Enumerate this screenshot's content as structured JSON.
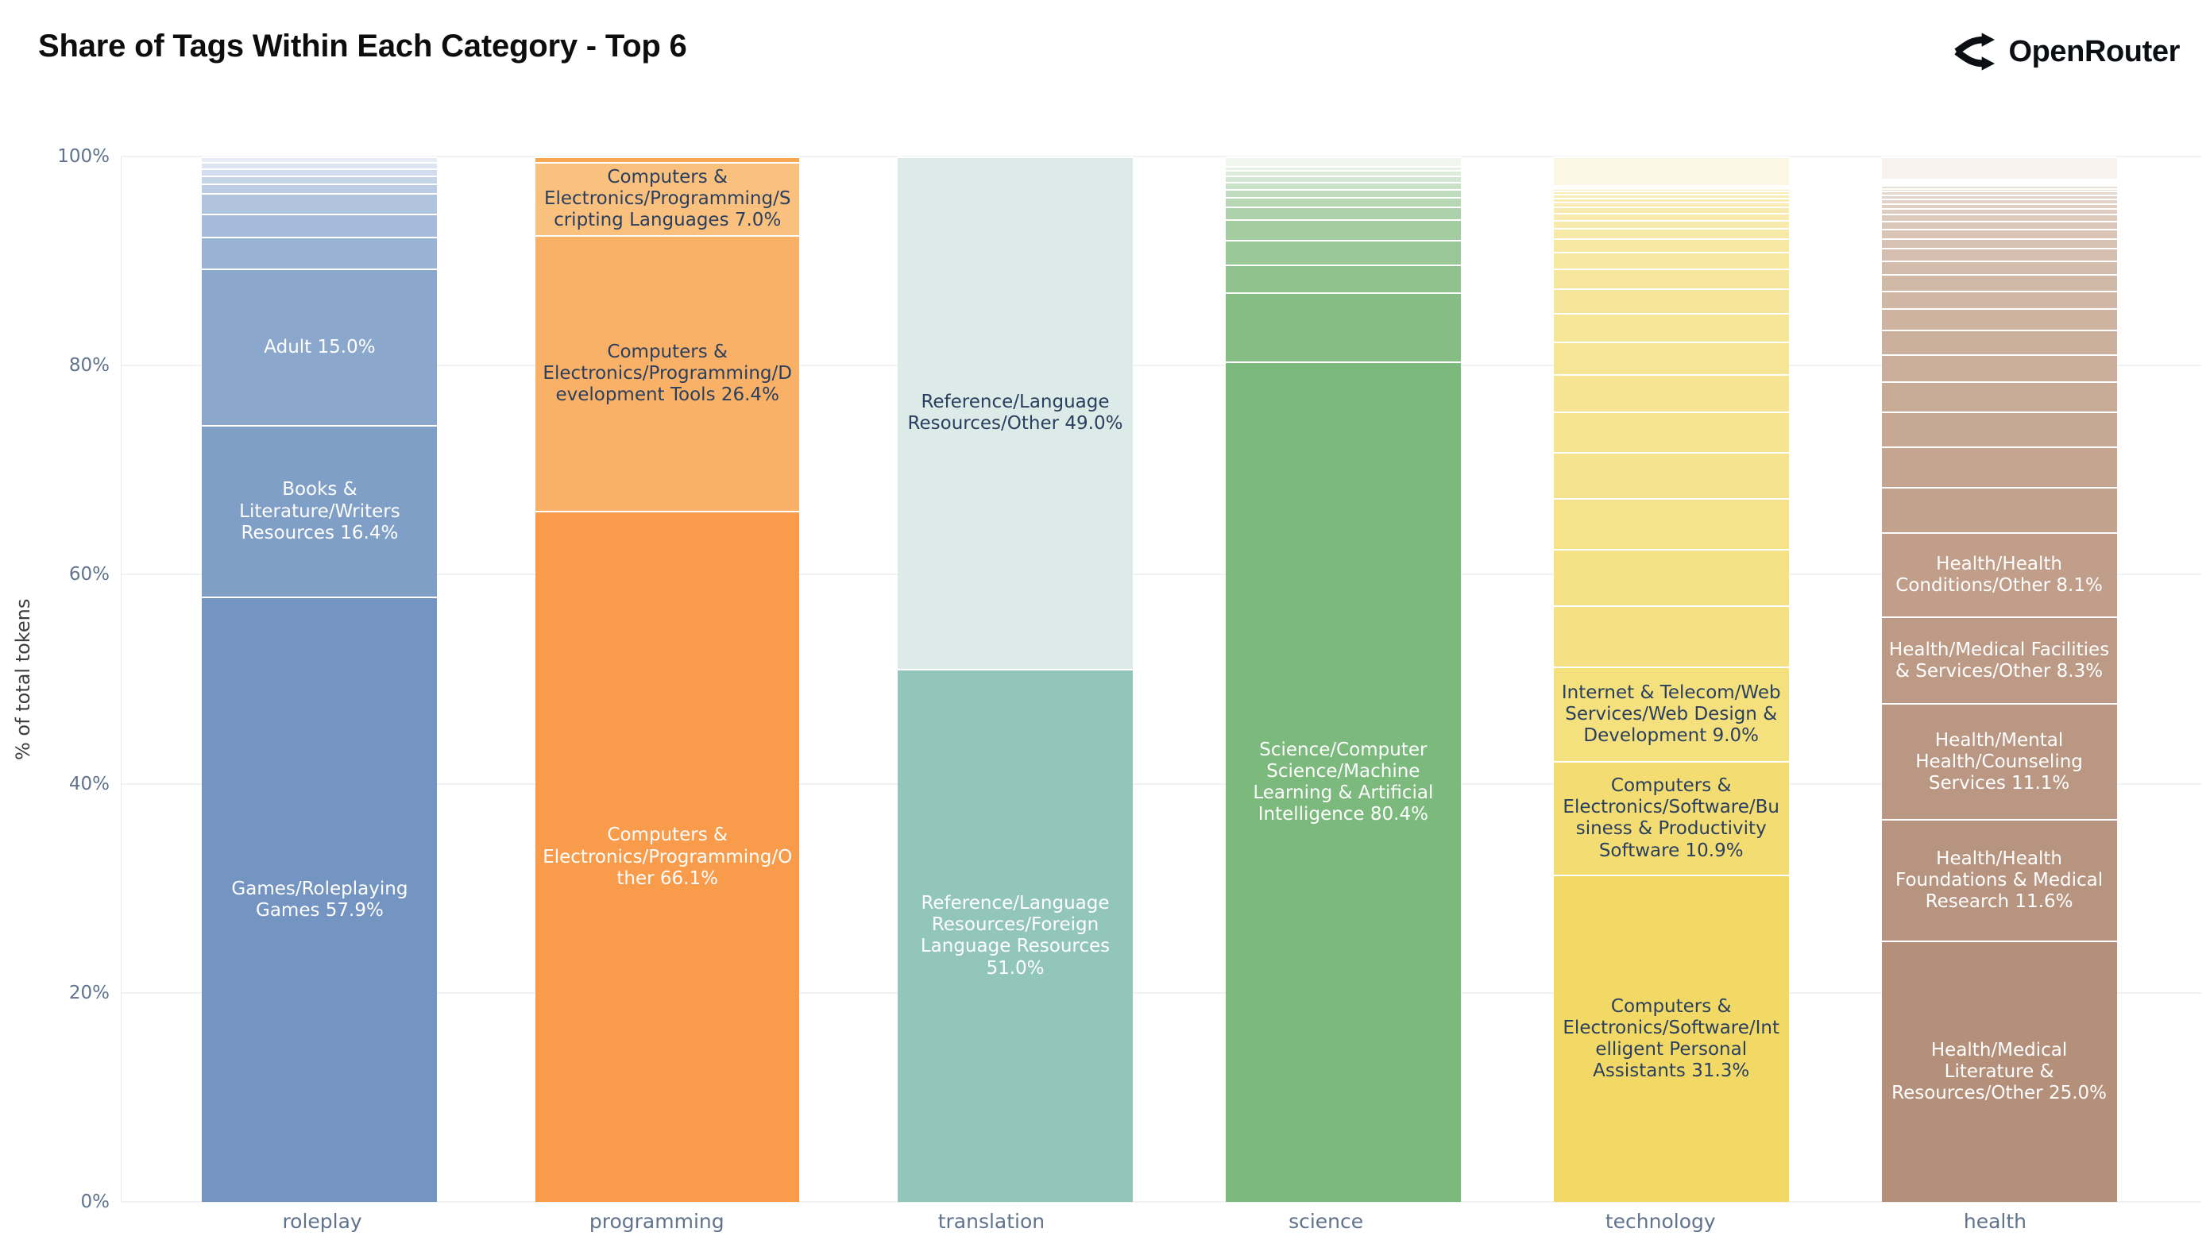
{
  "header": {
    "title": "Share of Tags Within Each Category - Top 6",
    "brand": "OpenRouter"
  },
  "y_axis": {
    "title": "% of total tokens",
    "tick_values": [
      0,
      20,
      40,
      60,
      80,
      100
    ],
    "tick_labels": [
      "0%",
      "20%",
      "40%",
      "60%",
      "80%",
      "100%"
    ]
  },
  "chart_data": {
    "type": "bar",
    "subtype": "stacked-normalized-percent",
    "title": "Share of Tags Within Each Category - Top 6",
    "xlabel": "",
    "ylabel": "% of total tokens",
    "ylim": [
      0,
      100
    ],
    "grid": true,
    "legend_position": "none (labels drawn inside segments)",
    "text_colors": {
      "light": "#ffffff",
      "dark": "#2a3f5f"
    },
    "categories": [
      "roleplay",
      "programming",
      "translation",
      "science",
      "technology",
      "health"
    ],
    "bars": [
      {
        "category": "roleplay",
        "segments": [
          {
            "label": "Games/Roleplaying Games",
            "pct": 57.9,
            "color": "#7495c1",
            "text": "light"
          },
          {
            "label": "Books & Literature/Writers Resources",
            "pct": 16.4,
            "color": "#809fc7",
            "text": "light"
          },
          {
            "label": "Adult",
            "pct": 15.0,
            "color": "#8ba7cb",
            "text": "light"
          }
        ],
        "tail": {
          "pct": 10.7,
          "weights": [
            3.0,
            2.2,
            2.0,
            0.9,
            0.8,
            0.7,
            0.6,
            0.5
          ],
          "color_from": "#9ab3d4",
          "color_to": "#e7edf6"
        }
      },
      {
        "category": "programming",
        "segments": [
          {
            "label": "Computers & Electronics/Programming/Other",
            "pct": 66.1,
            "color": "#f89b4b",
            "text": "light"
          },
          {
            "label": "Computers & Electronics/Programming/Development Tools",
            "pct": 26.4,
            "color": "#f9b067",
            "text": "dark"
          },
          {
            "label": "Computers & Electronics/Programming/Scripting Languages",
            "pct": 7.0,
            "color": "#fac07e",
            "text": "dark"
          }
        ],
        "tail": {
          "pct": 0.5,
          "weights": [
            1
          ],
          "color_from": "#f8a855",
          "color_to": "#f8a855"
        }
      },
      {
        "category": "translation",
        "segments": [
          {
            "label": "Reference/Language Resources/Foreign Language Resources",
            "pct": 51.0,
            "color": "#92c5bc",
            "text": "light"
          },
          {
            "label": "Reference/Language Resources/Other",
            "pct": 49.0,
            "color": "#dcebe8",
            "text": "dark"
          }
        ],
        "tail": {
          "pct": 0,
          "weights": [],
          "color_from": "#92c5bc",
          "color_to": "#92c5bc"
        }
      },
      {
        "category": "science",
        "segments": [
          {
            "label": "Science/Computer Science/Machine Learning & Artificial Intelligence",
            "pct": 80.4,
            "color": "#7cb97c",
            "text": "light"
          }
        ],
        "tail": {
          "pct": 19.6,
          "weights": [
            6.6,
            2.7,
            2.3,
            2.0,
            1.2,
            0.9,
            0.8,
            0.7,
            0.6,
            0.5,
            0.4,
            0.9
          ],
          "color_from": "#86bd84",
          "color_to": "#f0f5ee"
        }
      },
      {
        "category": "technology",
        "segments": [
          {
            "label": "Computers & Electronics/Software/Intelligent Personal Assistants",
            "pct": 31.3,
            "color": "#f2d966",
            "text": "dark"
          },
          {
            "label": "Computers & Electronics/Software/Business & Productivity Software",
            "pct": 10.9,
            "color": "#f3dc72",
            "text": "dark"
          },
          {
            "label": "Internet & Telecom/Web Services/Web Design & Development",
            "pct": 9.0,
            "color": "#f4e07d",
            "text": "dark"
          }
        ],
        "tail": {
          "pct": 46.1,
          "weights": [
            6.0,
            5.5,
            5.0,
            4.5,
            4.0,
            3.6,
            3.2,
            2.8,
            2.4,
            2.0,
            1.6,
            1.3,
            1.0,
            0.8,
            0.7,
            0.6,
            0.5,
            0.4,
            0.35,
            0.3,
            0.25,
            0.2,
            0.15
          ],
          "color_from": "#f5e184",
          "color_to": "#f9f0c4"
        },
        "cap": {
          "pct": 2.7,
          "color": "#fbf7e4"
        }
      },
      {
        "category": "health",
        "segments": [
          {
            "label": "Health/Medical Literature & Resources/Other",
            "pct": 25.0,
            "color": "#b4907b",
            "text": "light"
          },
          {
            "label": "Health/Health Foundations & Medical Research",
            "pct": 11.6,
            "color": "#b7947f",
            "text": "light"
          },
          {
            "label": "Health/Mental Health/Counseling Services",
            "pct": 11.1,
            "color": "#ba9782",
            "text": "light"
          },
          {
            "label": "Health/Medical Facilities & Services/Other",
            "pct": 8.3,
            "color": "#bd9a86",
            "text": "light"
          },
          {
            "label": "Health/Health Conditions/Other",
            "pct": 8.1,
            "color": "#c09e89",
            "text": "light"
          }
        ],
        "tail": {
          "pct": 33.8,
          "weights": [
            4.5,
            4.0,
            3.5,
            3.0,
            2.7,
            2.4,
            2.1,
            1.8,
            1.6,
            1.4,
            1.2,
            1.0,
            0.9,
            0.8,
            0.7,
            0.6,
            0.5,
            0.45,
            0.4,
            0.35,
            0.3,
            0.25,
            0.2,
            0.18,
            0.15,
            0.12
          ],
          "color_from": "#c3a28d",
          "color_to": "#f0e9e2"
        },
        "cap": {
          "pct": 2.1,
          "color": "#f7f2ec"
        }
      }
    ]
  }
}
